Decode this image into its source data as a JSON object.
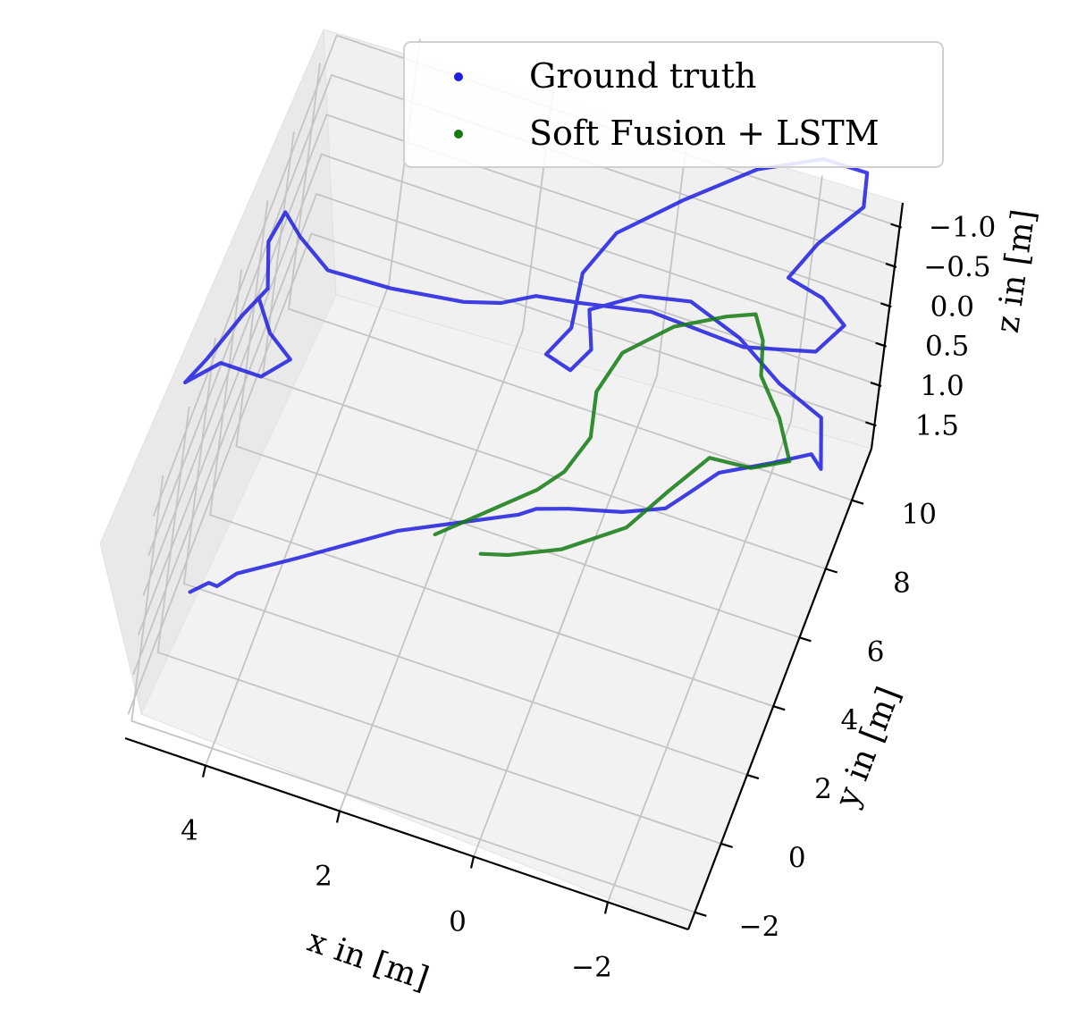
{
  "chart_data": {
    "type": "line3d",
    "title": "",
    "xlabel": "x in [m]",
    "ylabel": "y in [m]",
    "zlabel": "z in [m]",
    "x_ticks": [
      "4",
      "2",
      "0",
      "−2"
    ],
    "y_ticks": [
      "−2",
      "0",
      "2",
      "4",
      "6",
      "8",
      "10"
    ],
    "z_ticks": [
      "−1.0",
      "−0.5",
      "0.0",
      "0.5",
      "1.0",
      "1.5"
    ],
    "xlim": [
      5.2,
      -3.2
    ],
    "ylim": [
      -2.5,
      11.5
    ],
    "zlim": [
      1.8,
      -1.3
    ],
    "grid": true,
    "legend_position": "top-right",
    "series": [
      {
        "name": "Ground truth",
        "color": "#1f1fe0",
        "points": [
          [
            4.6,
            -2.0,
            0.0
          ],
          [
            4.4,
            -1.6,
            0.0
          ],
          [
            4.3,
            -1.4,
            0.1
          ],
          [
            4.1,
            -0.9,
            0.1
          ],
          [
            3.4,
            0.0,
            0.1
          ],
          [
            2.2,
            1.6,
            0.1
          ],
          [
            0.7,
            3.3,
            0.2
          ],
          [
            0.5,
            3.6,
            0.2
          ],
          [
            0.1,
            4.1,
            0.3
          ],
          [
            -0.6,
            4.7,
            0.4
          ],
          [
            -1.1,
            5.6,
            0.6
          ],
          [
            -1.3,
            6.4,
            0.7
          ],
          [
            -1.6,
            7.2,
            0.7
          ],
          [
            -2.2,
            8.1,
            0.8
          ],
          [
            -2.7,
            8.7,
            0.8
          ],
          [
            -2.9,
            8.4,
            0.8
          ],
          [
            -2.7,
            9.3,
            0.6
          ],
          [
            -2.0,
            9.6,
            0.5
          ],
          [
            -1.3,
            10.0,
            0.3
          ],
          [
            -0.5,
            10.3,
            0.2
          ],
          [
            0.2,
            10.0,
            0.2
          ],
          [
            0.8,
            9.2,
            0.2
          ],
          [
            0.6,
            8.4,
            0.3
          ],
          [
            0.8,
            7.9,
            0.4
          ],
          [
            1.2,
            8.1,
            0.4
          ],
          [
            1.0,
            9.0,
            0.4
          ],
          [
            1.1,
            10.3,
            0.3
          ],
          [
            0.8,
            11.2,
            0.1
          ],
          [
            0.0,
            12.0,
            -0.2
          ],
          [
            -0.9,
            12.8,
            -0.5
          ],
          [
            -1.8,
            13.0,
            -0.8
          ],
          [
            -2.5,
            12.6,
            -1.0
          ],
          [
            -2.6,
            11.9,
            -0.9
          ],
          [
            -2.1,
            11.2,
            -0.6
          ],
          [
            -1.8,
            10.7,
            -0.3
          ],
          [
            -2.3,
            10.9,
            -0.1
          ],
          [
            -2.7,
            10.6,
            0.0
          ],
          [
            -2.4,
            10.1,
            0.2
          ],
          [
            -1.4,
            9.8,
            0.3
          ],
          [
            0.0,
            9.9,
            0.3
          ],
          [
            1.0,
            9.5,
            0.3
          ],
          [
            1.6,
            9.3,
            0.3
          ],
          [
            2.0,
            8.6,
            0.2
          ],
          [
            2.5,
            8.3,
            0.2
          ],
          [
            3.5,
            7.8,
            0.1
          ],
          [
            4.4,
            7.5,
            0.0
          ],
          [
            4.9,
            7.9,
            -0.1
          ],
          [
            5.2,
            8.2,
            -0.2
          ],
          [
            5.3,
            7.5,
            -0.1
          ],
          [
            5.1,
            6.5,
            0.0
          ],
          [
            5.3,
            5.6,
            0.0
          ],
          [
            5.6,
            4.6,
            0.2
          ],
          [
            5.8,
            4.0,
            0.3
          ],
          [
            5.4,
            4.6,
            0.2
          ],
          [
            4.8,
            4.6,
            0.2
          ],
          [
            4.5,
            5.3,
            0.2
          ],
          [
            4.9,
            5.8,
            0.2
          ],
          [
            5.2,
            6.4,
            0.1
          ]
        ]
      },
      {
        "name": "Soft Fusion + LSTM",
        "color": "#137a13",
        "points": [
          [
            2.0,
            4.4,
            1.3
          ],
          [
            0.8,
            5.8,
            1.0
          ],
          [
            0.5,
            6.3,
            0.9
          ],
          [
            0.3,
            7.2,
            0.8
          ],
          [
            0.4,
            8.0,
            0.6
          ],
          [
            0.2,
            8.8,
            0.4
          ],
          [
            -0.4,
            9.5,
            0.2
          ],
          [
            -1.1,
            9.8,
            0.0
          ],
          [
            -1.5,
            9.9,
            -0.1
          ],
          [
            -1.7,
            9.5,
            0.0
          ],
          [
            -1.8,
            9.0,
            0.2
          ],
          [
            -2.2,
            8.5,
            0.4
          ],
          [
            -2.5,
            7.9,
            0.6
          ],
          [
            -2.0,
            7.6,
            0.7
          ],
          [
            -1.4,
            7.5,
            0.7
          ],
          [
            -1.0,
            6.5,
            0.8
          ],
          [
            -0.6,
            5.4,
            0.9
          ],
          [
            0.2,
            4.7,
            1.1
          ],
          [
            0.9,
            4.3,
            1.2
          ],
          [
            1.3,
            4.3,
            1.3
          ]
        ]
      }
    ]
  },
  "legend": {
    "entries": [
      "Ground truth",
      "Soft Fusion + LSTM"
    ]
  }
}
